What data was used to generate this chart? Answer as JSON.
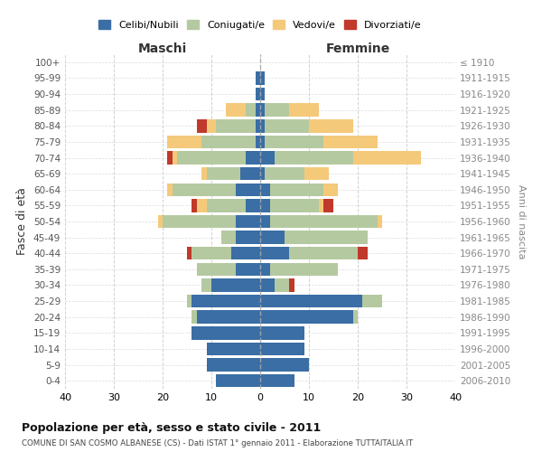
{
  "age_groups": [
    "0-4",
    "5-9",
    "10-14",
    "15-19",
    "20-24",
    "25-29",
    "30-34",
    "35-39",
    "40-44",
    "45-49",
    "50-54",
    "55-59",
    "60-64",
    "65-69",
    "70-74",
    "75-79",
    "80-84",
    "85-89",
    "90-94",
    "95-99",
    "100+"
  ],
  "birth_years": [
    "2006-2010",
    "2001-2005",
    "1996-2000",
    "1991-1995",
    "1986-1990",
    "1981-1985",
    "1976-1980",
    "1971-1975",
    "1966-1970",
    "1961-1965",
    "1956-1960",
    "1951-1955",
    "1946-1950",
    "1941-1945",
    "1936-1940",
    "1931-1935",
    "1926-1930",
    "1921-1925",
    "1916-1920",
    "1911-1915",
    "≤ 1910"
  ],
  "colors": {
    "celibi": "#3a6ea5",
    "coniugati": "#b5c9a0",
    "vedovi": "#f5c97a",
    "divorziati": "#c0392b"
  },
  "maschi": {
    "celibi": [
      9,
      11,
      11,
      14,
      13,
      14,
      10,
      5,
      6,
      5,
      5,
      3,
      5,
      4,
      3,
      1,
      1,
      1,
      1,
      1,
      0
    ],
    "coniugati": [
      0,
      0,
      0,
      0,
      1,
      1,
      2,
      8,
      8,
      3,
      15,
      8,
      13,
      7,
      14,
      11,
      8,
      2,
      0,
      0,
      0
    ],
    "vedovi": [
      0,
      0,
      0,
      0,
      0,
      0,
      0,
      0,
      0,
      0,
      1,
      2,
      1,
      1,
      1,
      7,
      2,
      4,
      0,
      0,
      0
    ],
    "divorziati": [
      0,
      0,
      0,
      0,
      0,
      0,
      0,
      0,
      1,
      0,
      0,
      1,
      0,
      0,
      1,
      0,
      2,
      0,
      0,
      0,
      0
    ]
  },
  "femmine": {
    "celibi": [
      7,
      10,
      9,
      9,
      19,
      21,
      3,
      2,
      6,
      5,
      2,
      2,
      2,
      1,
      3,
      1,
      1,
      1,
      1,
      1,
      0
    ],
    "coniugati": [
      0,
      0,
      0,
      0,
      1,
      4,
      3,
      14,
      14,
      17,
      22,
      10,
      11,
      8,
      16,
      12,
      9,
      5,
      0,
      0,
      0
    ],
    "vedovi": [
      0,
      0,
      0,
      0,
      0,
      0,
      0,
      0,
      0,
      0,
      1,
      1,
      3,
      5,
      14,
      11,
      9,
      6,
      0,
      0,
      0
    ],
    "divorziati": [
      0,
      0,
      0,
      0,
      0,
      0,
      1,
      0,
      2,
      0,
      0,
      2,
      0,
      0,
      0,
      0,
      0,
      0,
      0,
      0,
      0
    ]
  },
  "title": "Popolazione per età, sesso e stato civile - 2011",
  "subtitle": "COMUNE DI SAN COSMO ALBANESE (CS) - Dati ISTAT 1° gennaio 2011 - Elaborazione TUTTAITALIA.IT",
  "xlabel_left": "Maschi",
  "xlabel_right": "Femmine",
  "ylabel_left": "Fasce di età",
  "ylabel_right": "Anni di nascita",
  "xlim": 40,
  "background_color": "#ffffff",
  "grid_color": "#cccccc",
  "legend_labels": [
    "Celibi/Nubili",
    "Coniugati/e",
    "Vedovi/e",
    "Divorziati/e"
  ]
}
